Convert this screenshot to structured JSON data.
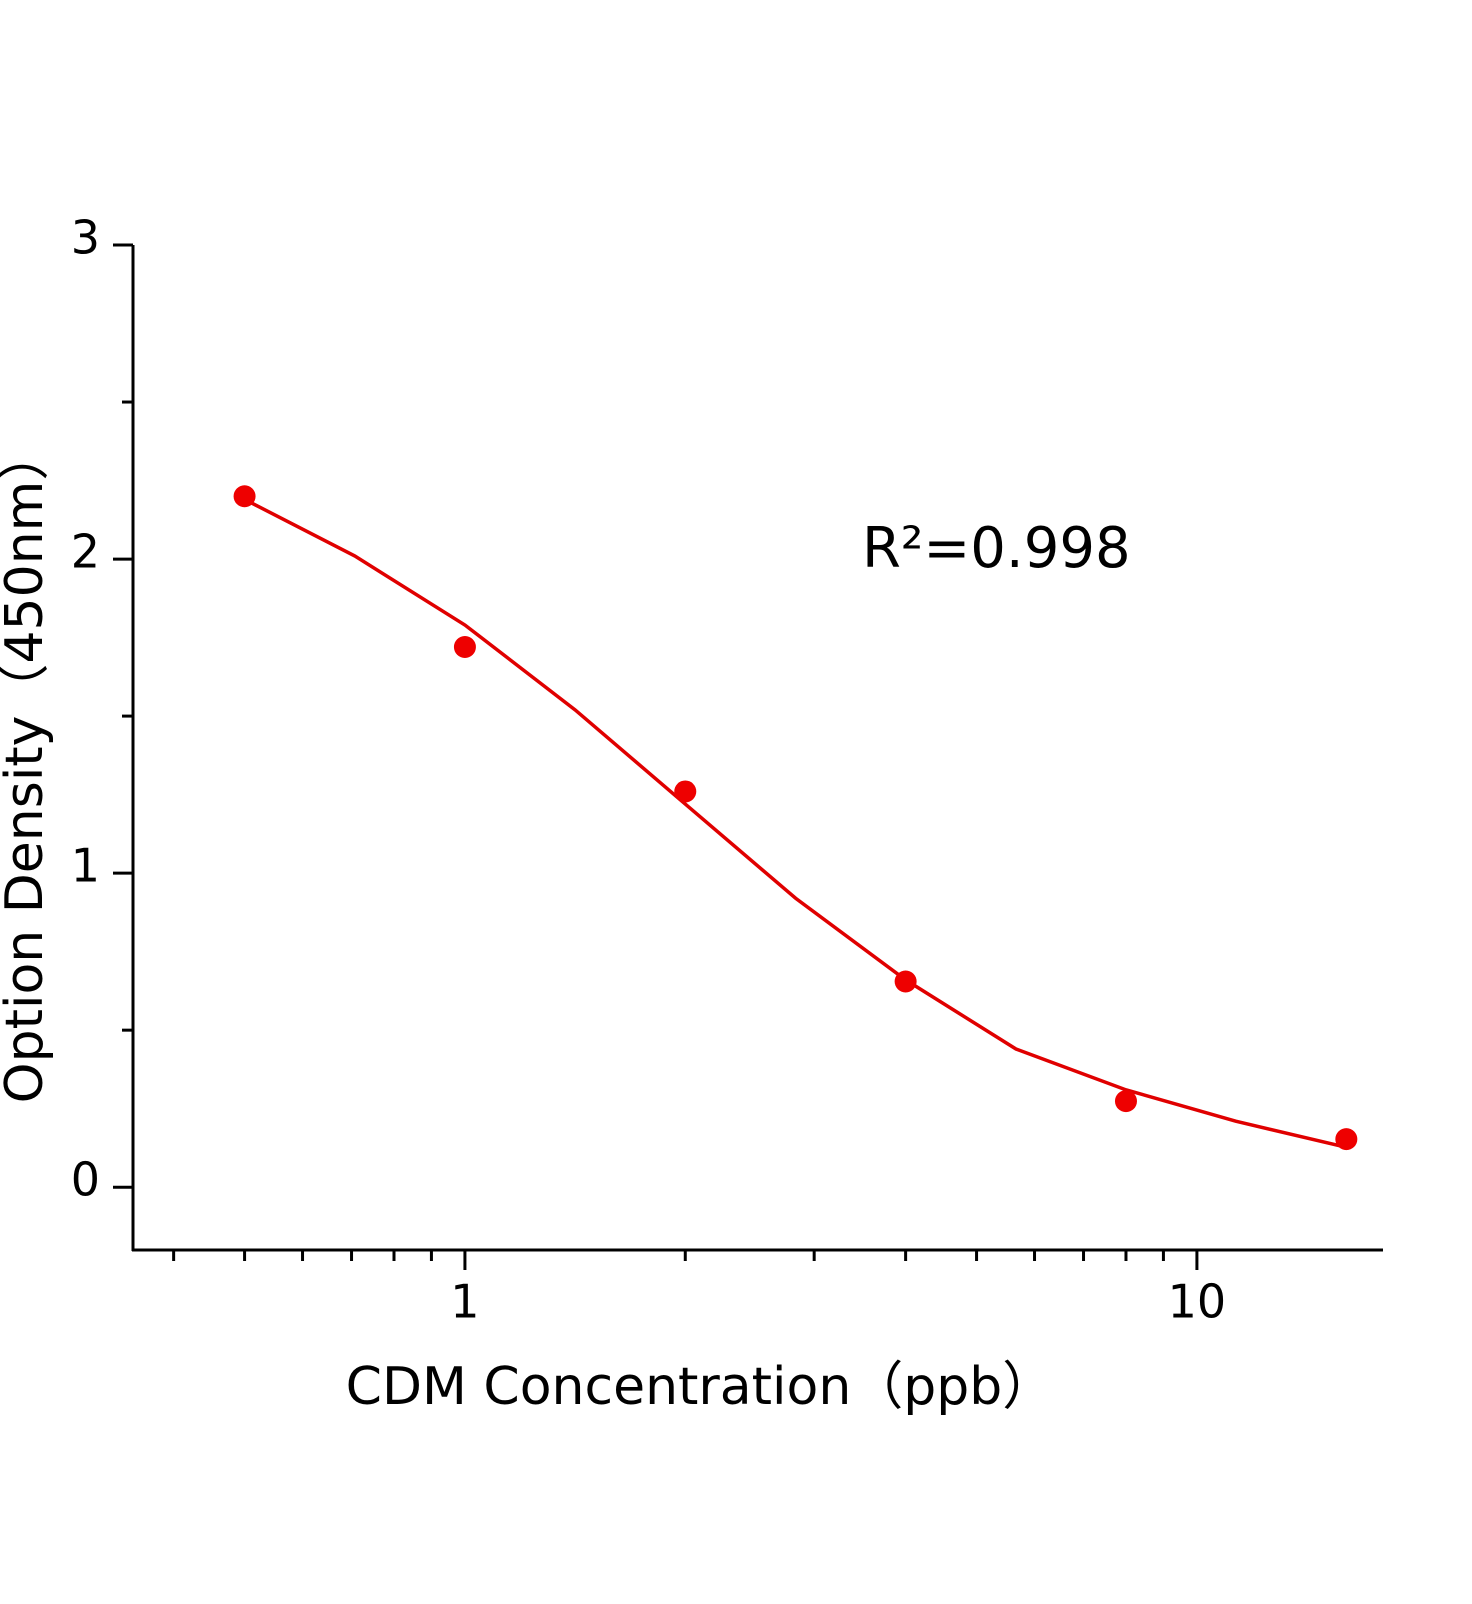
{
  "chart_data": {
    "type": "scatter",
    "xlabel": "CDM Concentration（ppb）",
    "ylabel": "Option Density（450nm）",
    "annotation": "R²=0.998",
    "xscale": "log",
    "xlim": [
      0.352,
      17.9
    ],
    "xticks": [
      1,
      10
    ],
    "xminorticks": [
      0.4,
      0.5,
      0.6,
      0.7,
      0.8,
      0.9,
      2,
      3,
      4,
      5,
      6,
      7,
      8,
      9
    ],
    "ylim": [
      -0.2,
      3
    ],
    "yticks": [
      0,
      1,
      2,
      3
    ],
    "yminorticks": [
      0.5,
      1.5,
      2.5
    ],
    "grid": false,
    "series": [
      {
        "mode": "markers",
        "color": "#ee0000",
        "x": [
          0.5,
          1,
          2,
          4,
          8,
          16
        ],
        "values": [
          2.2,
          1.72,
          1.26,
          0.655,
          0.274,
          0.153
        ]
      },
      {
        "mode": "line",
        "color": "#e00000",
        "x": [
          0.5,
          0.707,
          1,
          1.414,
          2,
          2.83,
          4,
          5.66,
          8,
          11.3,
          16
        ],
        "values": [
          2.19,
          2.01,
          1.79,
          1.52,
          1.22,
          0.92,
          0.66,
          0.44,
          0.31,
          0.21,
          0.127
        ]
      }
    ]
  }
}
